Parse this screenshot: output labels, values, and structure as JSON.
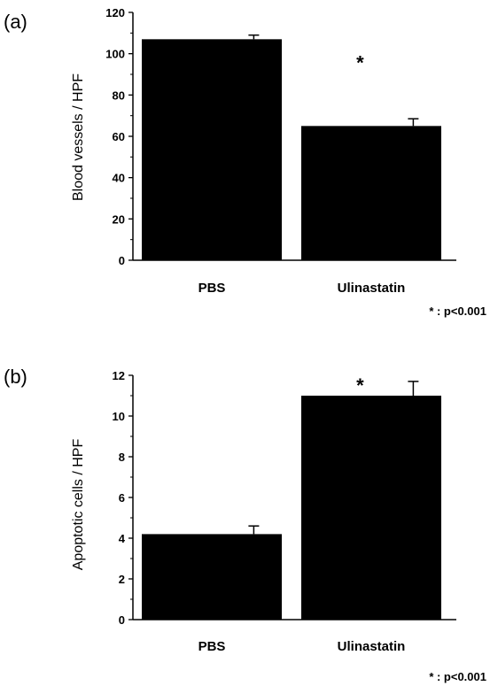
{
  "chart_data": [
    {
      "type": "bar",
      "panel_label": "(a)",
      "categories": [
        "PBS",
        "Ulinastatin"
      ],
      "values": [
        107,
        65
      ],
      "error": [
        2,
        3.5
      ],
      "title": "",
      "xlabel": "",
      "ylabel": "Blood vessels / HPF",
      "ylim": [
        0,
        120
      ],
      "yticks": [
        "0",
        "20",
        "40",
        "60",
        "80",
        "100",
        "120"
      ],
      "significance": [
        "",
        "*"
      ],
      "note": "* : p<0.001",
      "bar_color": "#000000",
      "grid": false
    },
    {
      "type": "bar",
      "panel_label": "(b)",
      "categories": [
        "PBS",
        "Ulinastatin"
      ],
      "values": [
        4.2,
        11.0
      ],
      "error": [
        0.4,
        0.7
      ],
      "title": "",
      "xlabel": "",
      "ylabel": "Apoptotic cells / HPF",
      "ylim": [
        0,
        12
      ],
      "yticks": [
        "0",
        "2",
        "4",
        "6",
        "8",
        "10",
        "12"
      ],
      "significance": [
        "",
        "*"
      ],
      "note": "* : p<0.001",
      "bar_color": "#000000",
      "grid": false
    }
  ]
}
